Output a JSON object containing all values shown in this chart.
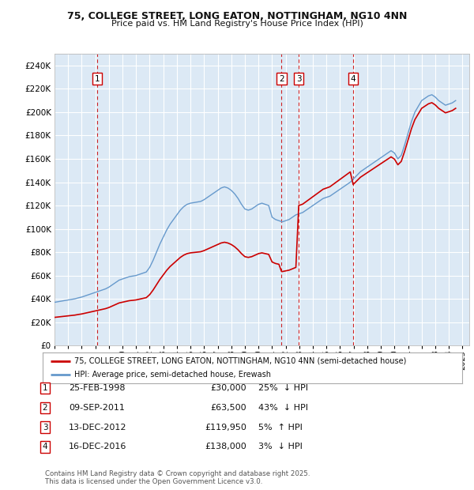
{
  "title1": "75, COLLEGE STREET, LONG EATON, NOTTINGHAM, NG10 4NN",
  "title2": "Price paid vs. HM Land Registry's House Price Index (HPI)",
  "xlim_start": 1995.0,
  "xlim_end": 2025.5,
  "ylim_min": 0,
  "ylim_max": 250000,
  "yticks": [
    0,
    20000,
    40000,
    60000,
    80000,
    100000,
    120000,
    140000,
    160000,
    180000,
    200000,
    220000,
    240000
  ],
  "ytick_labels": [
    "£0",
    "£20K",
    "£40K",
    "£60K",
    "£80K",
    "£100K",
    "£120K",
    "£140K",
    "£160K",
    "£180K",
    "£200K",
    "£220K",
    "£240K"
  ],
  "plot_bg": "#dce9f5",
  "grid_color": "#ffffff",
  "hpi_color": "#6699cc",
  "price_color": "#cc0000",
  "vline_color": "#cc0000",
  "transactions": [
    {
      "num": 1,
      "date_str": "25-FEB-1998",
      "year": 1998.15,
      "price": 30000,
      "pct": "25%",
      "dir": "↓"
    },
    {
      "num": 2,
      "date_str": "09-SEP-2011",
      "year": 2011.69,
      "price": 63500,
      "pct": "43%",
      "dir": "↓"
    },
    {
      "num": 3,
      "date_str": "13-DEC-2012",
      "year": 2012.96,
      "price": 119950,
      "pct": "5%",
      "dir": "↑"
    },
    {
      "num": 4,
      "date_str": "16-DEC-2016",
      "year": 2016.96,
      "price": 138000,
      "pct": "3%",
      "dir": "↓"
    }
  ],
  "legend_label_price": "75, COLLEGE STREET, LONG EATON, NOTTINGHAM, NG10 4NN (semi-detached house)",
  "legend_label_hpi": "HPI: Average price, semi-detached house, Erewash",
  "footer1": "Contains HM Land Registry data © Crown copyright and database right 2025.",
  "footer2": "This data is licensed under the Open Government Licence v3.0.",
  "hpi_data": {
    "years": [
      1995.0,
      1995.25,
      1995.5,
      1995.75,
      1996.0,
      1996.25,
      1996.5,
      1996.75,
      1997.0,
      1997.25,
      1997.5,
      1997.75,
      1998.0,
      1998.25,
      1998.5,
      1998.75,
      1999.0,
      1999.25,
      1999.5,
      1999.75,
      2000.0,
      2000.25,
      2000.5,
      2000.75,
      2001.0,
      2001.25,
      2001.5,
      2001.75,
      2002.0,
      2002.25,
      2002.5,
      2002.75,
      2003.0,
      2003.25,
      2003.5,
      2003.75,
      2004.0,
      2004.25,
      2004.5,
      2004.75,
      2005.0,
      2005.25,
      2005.5,
      2005.75,
      2006.0,
      2006.25,
      2006.5,
      2006.75,
      2007.0,
      2007.25,
      2007.5,
      2007.75,
      2008.0,
      2008.25,
      2008.5,
      2008.75,
      2009.0,
      2009.25,
      2009.5,
      2009.75,
      2010.0,
      2010.25,
      2010.5,
      2010.75,
      2011.0,
      2011.25,
      2011.5,
      2011.75,
      2012.0,
      2012.25,
      2012.5,
      2012.75,
      2013.0,
      2013.25,
      2013.5,
      2013.75,
      2014.0,
      2014.25,
      2014.5,
      2014.75,
      2015.0,
      2015.25,
      2015.5,
      2015.75,
      2016.0,
      2016.25,
      2016.5,
      2016.75,
      2017.0,
      2017.25,
      2017.5,
      2017.75,
      2018.0,
      2018.25,
      2018.5,
      2018.75,
      2019.0,
      2019.25,
      2019.5,
      2019.75,
      2020.0,
      2020.25,
      2020.5,
      2020.75,
      2021.0,
      2021.25,
      2021.5,
      2021.75,
      2022.0,
      2022.25,
      2022.5,
      2022.75,
      2023.0,
      2023.25,
      2023.5,
      2023.75,
      2024.0,
      2024.25,
      2024.5
    ],
    "values": [
      37000,
      37500,
      38000,
      38500,
      39000,
      39500,
      40000,
      40800,
      41500,
      42500,
      43500,
      44500,
      45500,
      46500,
      47500,
      48500,
      50000,
      52000,
      54000,
      56000,
      57000,
      58000,
      59000,
      59500,
      60000,
      61000,
      62000,
      63000,
      67000,
      73000,
      80000,
      87000,
      93000,
      99000,
      104000,
      108000,
      112000,
      116000,
      119000,
      121000,
      122000,
      122500,
      123000,
      123500,
      125000,
      127000,
      129000,
      131000,
      133000,
      135000,
      136000,
      135000,
      133000,
      130000,
      126000,
      121000,
      117000,
      116000,
      117000,
      119000,
      121000,
      122000,
      121000,
      120000,
      110000,
      108000,
      107000,
      106000,
      107000,
      108000,
      110000,
      112000,
      113000,
      114000,
      116000,
      118000,
      120000,
      122000,
      124000,
      126000,
      127000,
      128000,
      130000,
      132000,
      134000,
      136000,
      138000,
      140000,
      143000,
      146000,
      149000,
      151000,
      153000,
      155000,
      157000,
      159000,
      161000,
      163000,
      165000,
      167000,
      165000,
      160000,
      163000,
      172000,
      182000,
      192000,
      200000,
      205000,
      210000,
      212000,
      214000,
      215000,
      213000,
      210000,
      208000,
      206000,
      207000,
      208000,
      210000
    ]
  }
}
